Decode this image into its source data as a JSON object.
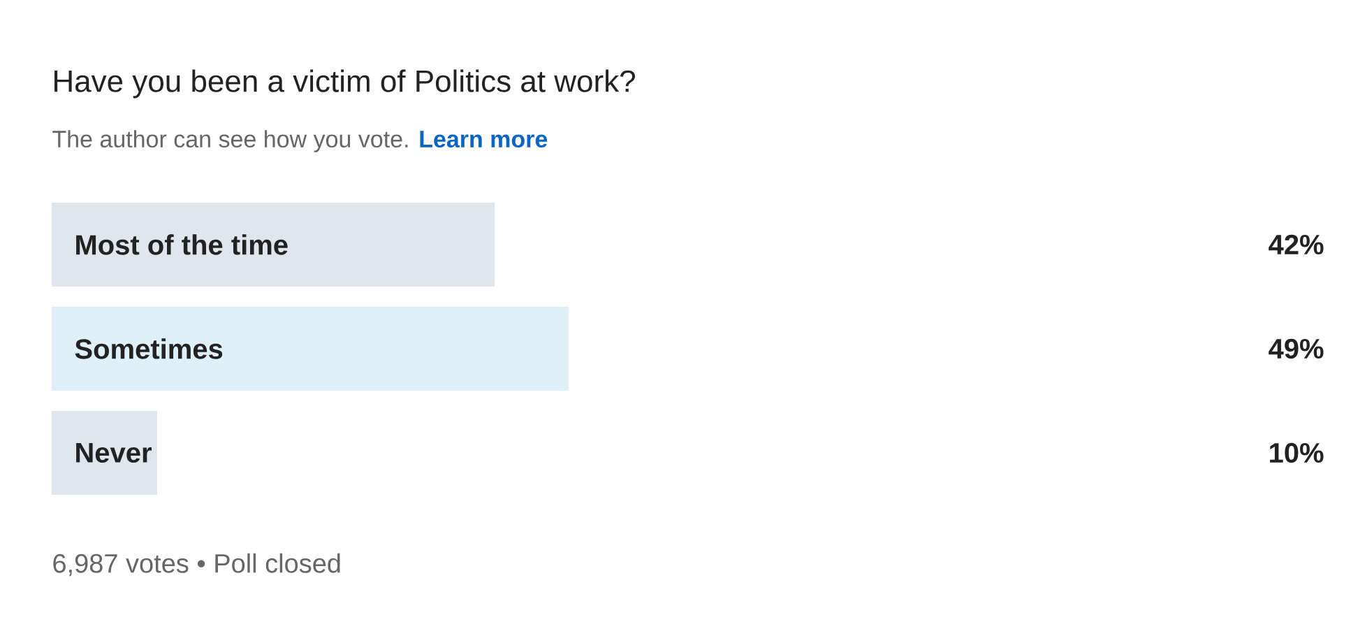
{
  "chart_data": {
    "type": "bar",
    "orientation": "horizontal",
    "title": "Have you been a victim of Politics at work?",
    "subtitle": "The author can see how you vote.",
    "categories": [
      "Most of the time",
      "Sometimes",
      "Never"
    ],
    "values": [
      42,
      49,
      10
    ],
    "colors": [
      "#e1e6ec",
      "#dff0f8",
      "#e1e6ec"
    ],
    "value_labels": [
      "42%",
      "49%",
      "10%"
    ],
    "annotations": [
      "Learn more",
      "6,987 votes • Poll closed"
    ]
  }
}
